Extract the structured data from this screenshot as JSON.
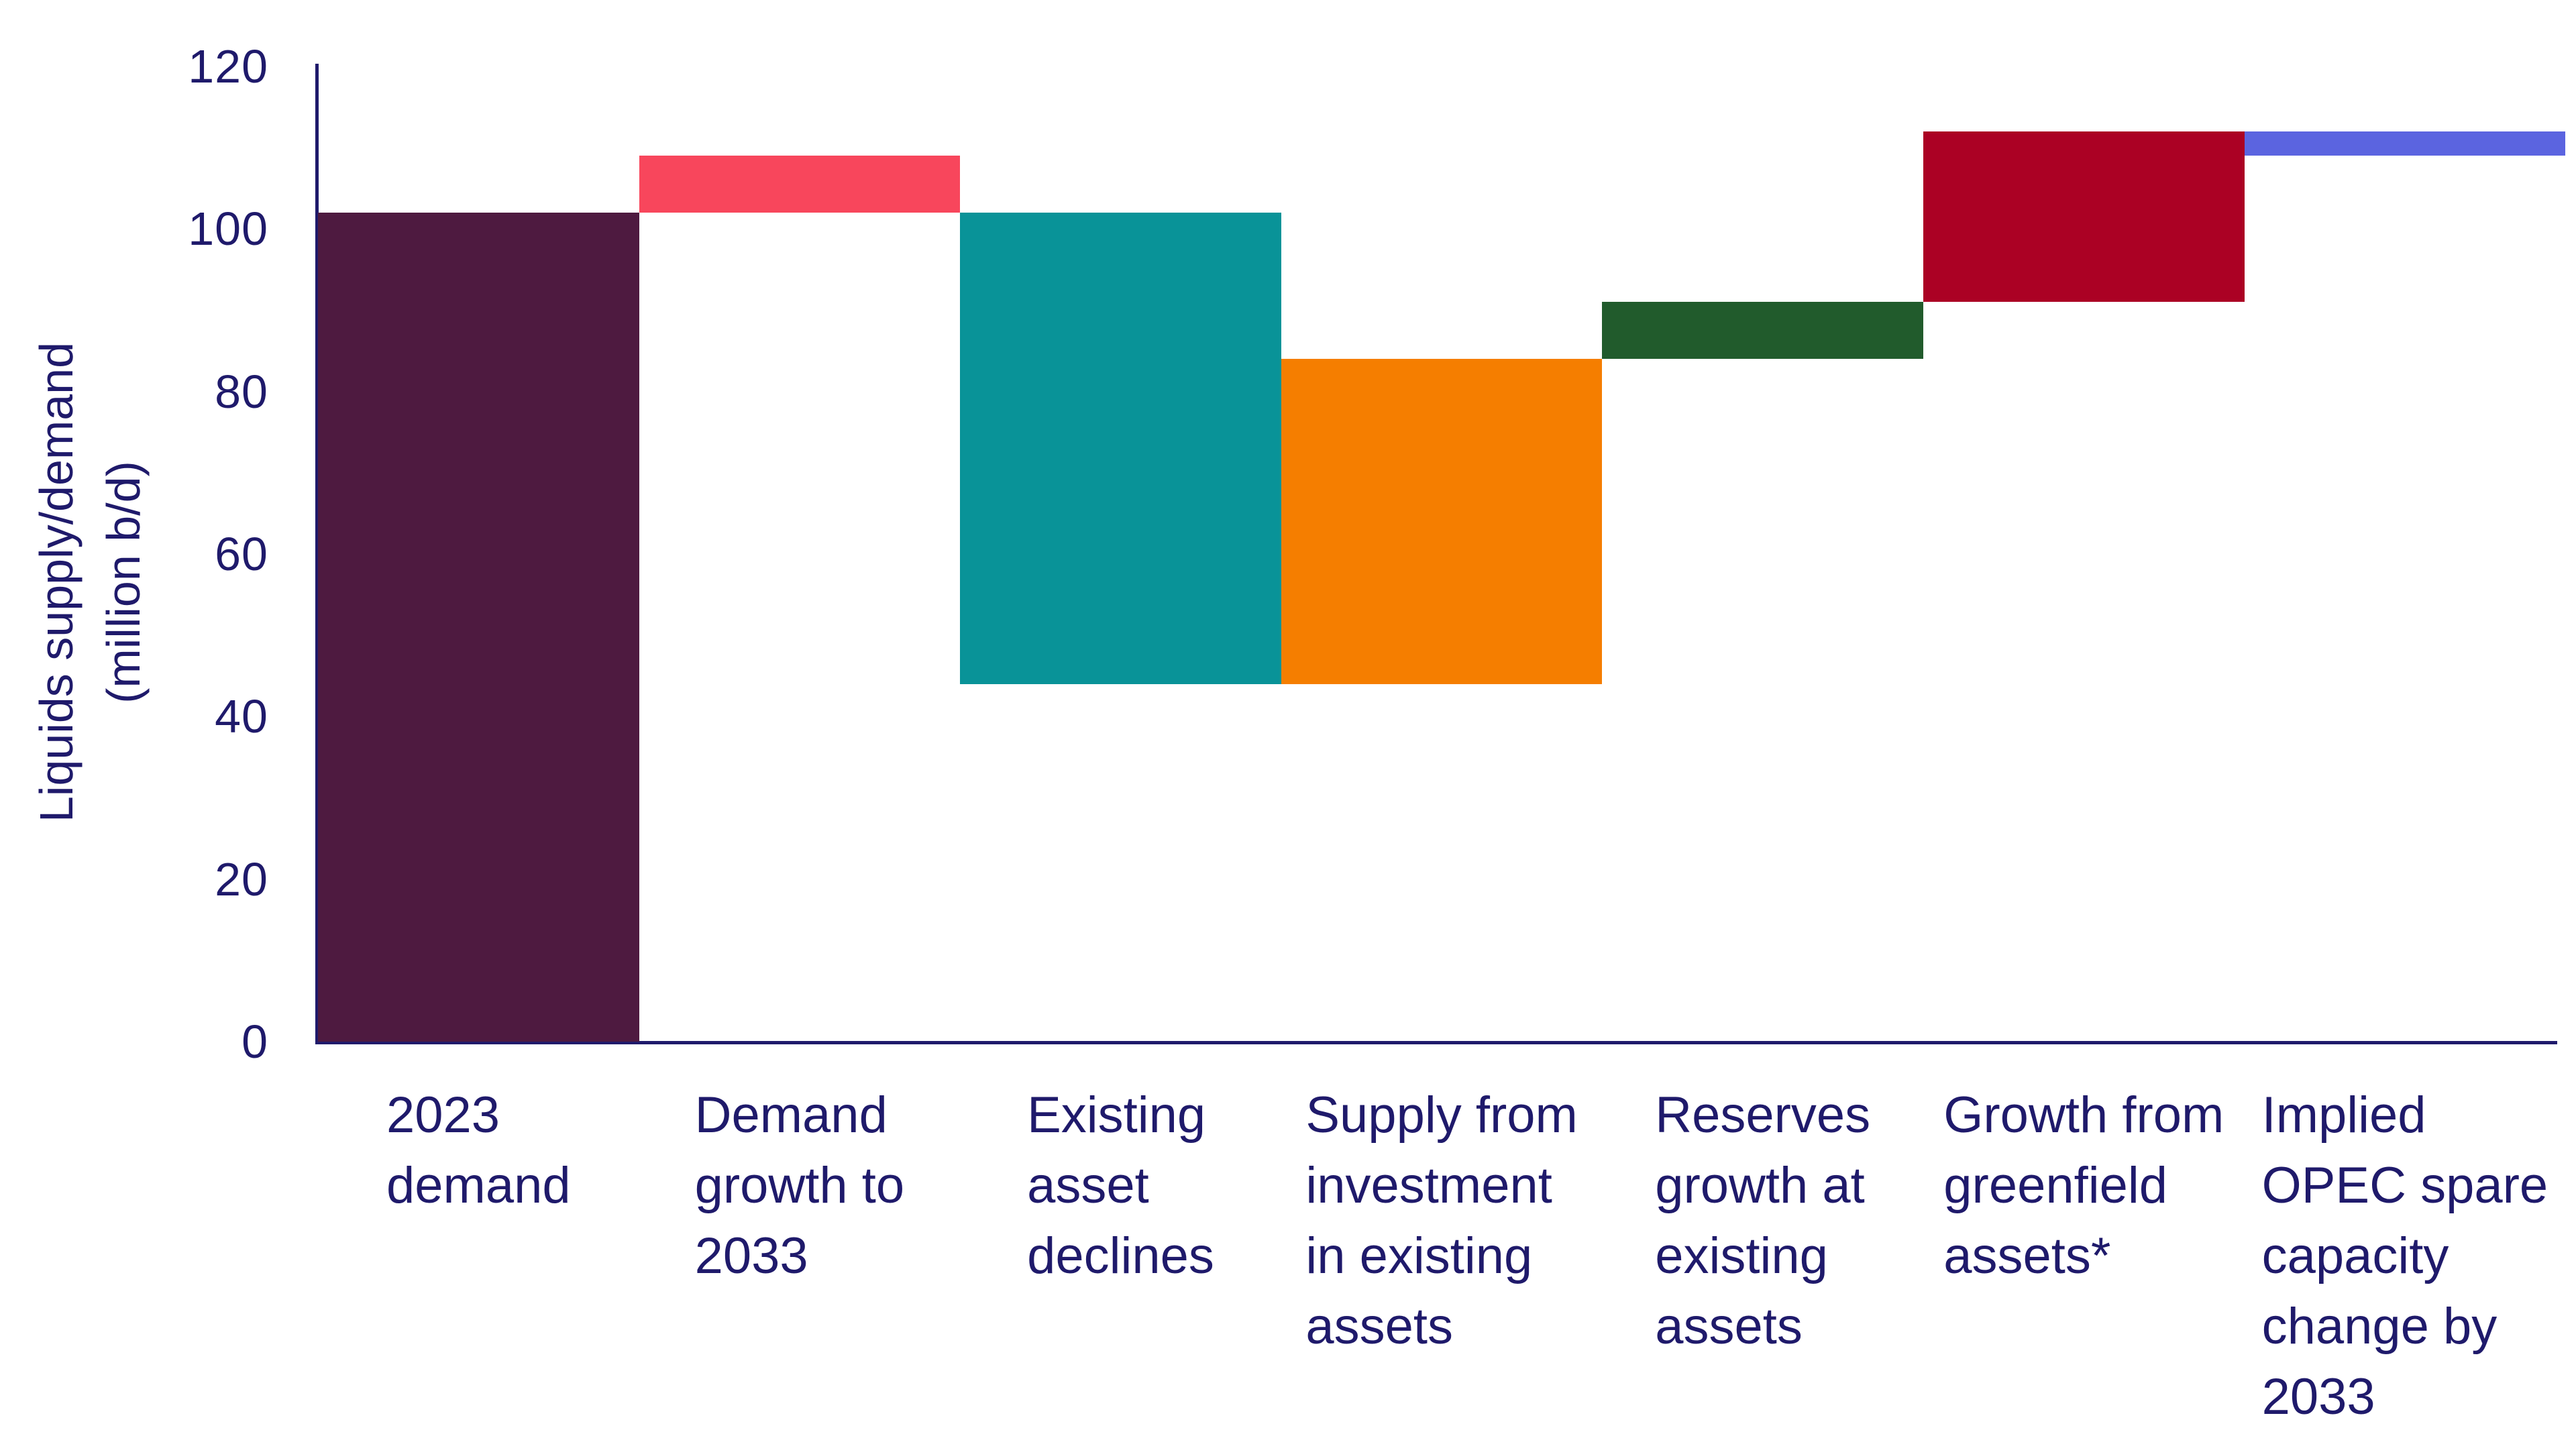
{
  "chart_data": {
    "type": "bar",
    "variant": "waterfall",
    "title": "",
    "ylabel_lines": [
      "Liquids supply/demand",
      "(million b/d)"
    ],
    "ylabel": "Liquids supply/demand (million b/d)",
    "xlabel": "",
    "unit": "million b/d",
    "ylim": [
      0,
      120
    ],
    "yticks": [
      0,
      20,
      40,
      60,
      80,
      100,
      120
    ],
    "grid": false,
    "legend": false,
    "text_color": "#1f1a6b",
    "axis_color": "#1f1a6b",
    "categories": [
      "2023 demand",
      "Demand growth to 2033",
      "Existing asset declines",
      "Supply from investment in existing assets",
      "Reserves growth at existing assets",
      "Growth from greenfield assets*",
      "Implied OPEC spare capacity change by 2033"
    ],
    "bars": [
      {
        "label": "2023 demand",
        "label_lines": [
          "2023",
          "demand"
        ],
        "start": 0,
        "end": 102,
        "value": 102,
        "kind": "total",
        "color": "#4e1a40"
      },
      {
        "label": "Demand growth to 2033",
        "label_lines": [
          "Demand",
          "growth to",
          "2033"
        ],
        "start": 102,
        "end": 109,
        "value": 7,
        "kind": "increase",
        "color": "#f8465c"
      },
      {
        "label": "Existing asset declines",
        "label_lines": [
          "Existing",
          "asset",
          "declines"
        ],
        "start": 102,
        "end": 44,
        "value": -58,
        "kind": "decrease",
        "color": "#099398"
      },
      {
        "label": "Supply from investment in existing assets",
        "label_lines": [
          "Supply from",
          "investment",
          "in existing",
          "assets"
        ],
        "start": 44,
        "end": 84,
        "value": 40,
        "kind": "increase",
        "color": "#f57e00"
      },
      {
        "label": "Reserves growth at existing assets",
        "label_lines": [
          "Reserves",
          "growth at",
          "existing",
          "assets"
        ],
        "start": 84,
        "end": 91,
        "value": 7,
        "kind": "increase",
        "color": "#215b2c"
      },
      {
        "label": "Growth from greenfield assets*",
        "label_lines": [
          "Growth from",
          "greenfield",
          "assets*"
        ],
        "start": 91,
        "end": 112,
        "value": 21,
        "kind": "increase",
        "color": "#ab0124"
      },
      {
        "label": "Implied OPEC spare capacity change by 2033",
        "label_lines": [
          "Implied",
          "OPEC spare",
          "capacity",
          "change by",
          "2033"
        ],
        "start": 109,
        "end": 112,
        "value": 3,
        "kind": "gap",
        "color": "#5b64e0"
      }
    ]
  }
}
